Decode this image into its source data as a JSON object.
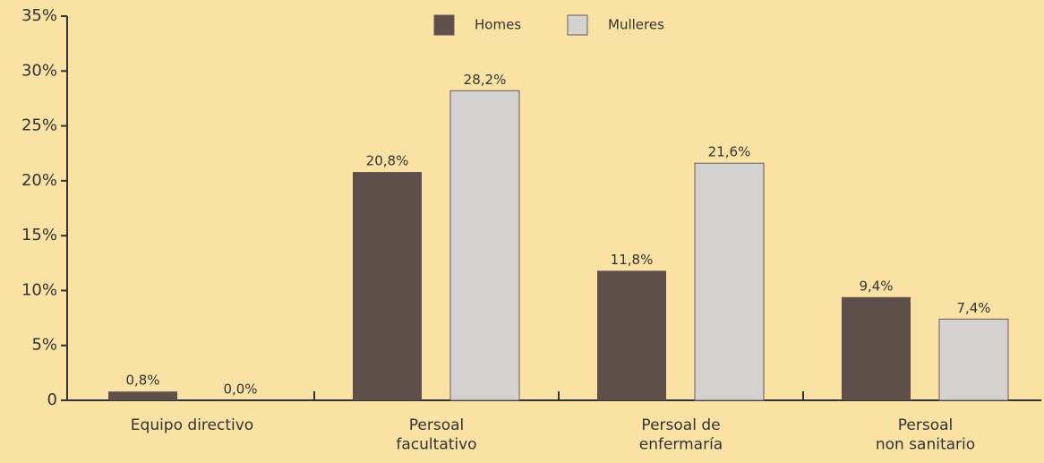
{
  "chart_data": {
    "type": "bar",
    "categories": [
      "Equipo directivo",
      "Persoal\nfacultativo",
      "Persoal de\nenfermaría",
      "Persoal\nnon sanitario"
    ],
    "series": [
      {
        "name": "Homes",
        "color": "#5f4f4b",
        "values": [
          0.8,
          20.8,
          11.8,
          9.4
        ],
        "value_labels": [
          "0,8%",
          "20,8%",
          "11,8%",
          "9,4%"
        ]
      },
      {
        "name": "Mulleres",
        "color": "#d4d1d1",
        "values": [
          0.0,
          28.2,
          21.6,
          7.4
        ],
        "value_labels": [
          "0,0%",
          "28,2%",
          "21,6%",
          "7,4%"
        ]
      }
    ],
    "ylim": [
      0,
      35
    ],
    "yticks": [
      0,
      {
        "value": 5,
        "label": "5%"
      },
      {
        "value": 10,
        "label": "10%"
      },
      {
        "value": 15,
        "label": "15%"
      },
      {
        "value": 20,
        "label": "20%"
      },
      {
        "value": 25,
        "label": "25%"
      },
      {
        "value": 30,
        "label": "30%"
      },
      {
        "value": 35,
        "label": "35%"
      }
    ],
    "legend": "top"
  }
}
